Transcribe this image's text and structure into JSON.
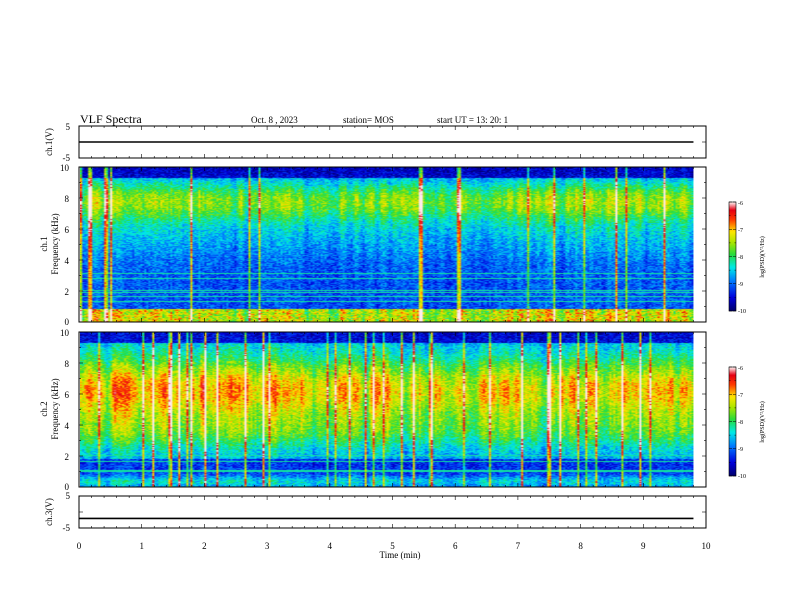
{
  "header": {
    "title": "VLF Spectra",
    "date": "Oct. 8 , 2023",
    "station": "station= MOS",
    "start": "start  UT =   13: 20: 1"
  },
  "chart_data": [
    {
      "type": "line",
      "ylabel": "ch.1(V)",
      "ylim": [
        -5,
        5
      ],
      "yticks": [
        "5",
        "-5"
      ],
      "xlim": [
        0,
        10
      ],
      "series": [
        {
          "x": [
            0,
            9.8
          ],
          "y": [
            0,
            0
          ]
        }
      ]
    },
    {
      "type": "heatmap",
      "ylabel": "ch.1",
      "ylabel2": "Frequency (kHz)",
      "ylim": [
        0,
        10
      ],
      "yticks": [
        "0",
        "2",
        "4",
        "6",
        "8",
        "10"
      ],
      "xlim": [
        0,
        10
      ],
      "data_extent_min": 9.8,
      "colorbar": {
        "label": "log(PSD)(V²/Hz)",
        "range": [
          -10,
          -6
        ],
        "ticks": [
          "-6",
          "-7",
          "-8",
          "-9",
          "-10"
        ]
      }
    },
    {
      "type": "heatmap",
      "ylabel": "ch.2",
      "ylabel2": "Frequency (kHz)",
      "ylim": [
        0,
        10
      ],
      "yticks": [
        "0",
        "2",
        "4",
        "6",
        "8",
        "10"
      ],
      "xlim": [
        0,
        10
      ],
      "data_extent_min": 9.8,
      "colorbar": {
        "label": "log(PSD)(V²/Hz)",
        "range": [
          -10,
          -6
        ],
        "ticks": [
          "-6",
          "-7",
          "-8",
          "-9",
          "-10"
        ]
      }
    },
    {
      "type": "line",
      "ylabel": "ch.3(V)",
      "ylim": [
        -5,
        5
      ],
      "yticks": [
        "5",
        "-5"
      ],
      "xlim": [
        0,
        10
      ],
      "xlabel": "Time  (min)",
      "xticks": [
        "0",
        "1",
        "2",
        "3",
        "4",
        "5",
        "6",
        "7",
        "8",
        "9",
        "10"
      ],
      "series": [
        {
          "x": [
            0,
            9.8
          ],
          "y": [
            -2,
            -2
          ]
        }
      ]
    }
  ]
}
